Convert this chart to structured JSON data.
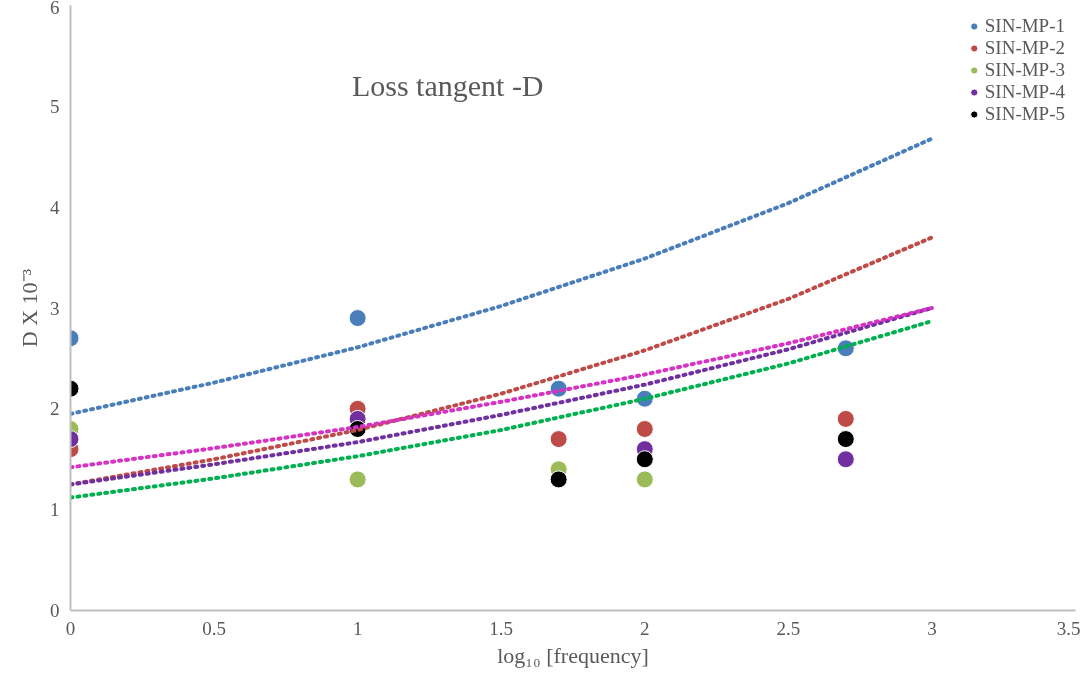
{
  "chart_data": {
    "type": "scatter",
    "title": "Loss tangent -D",
    "xlabel": "log₁₀ [frequency]",
    "ylabel": "D X 10⁻³",
    "x": [
      0,
      1,
      1.7,
      2,
      2.7
    ],
    "xlim": [
      0,
      3.5
    ],
    "xticks": [
      0,
      0.5,
      1,
      1.5,
      2,
      2.5,
      3,
      3.5
    ],
    "ylim": [
      0,
      6
    ],
    "yticks": [
      0,
      1,
      2,
      3,
      4,
      5,
      6
    ],
    "grid": false,
    "legend": "top right",
    "marker": "circle",
    "series": [
      {
        "name": "SIN-MP-1",
        "color": "#4a7ebb",
        "values": [
          2.7,
          2.9,
          2.2,
          2.1,
          2.6
        ]
      },
      {
        "name": "SIN-MP-2",
        "color": "#be4b48",
        "values": [
          1.6,
          2.0,
          1.7,
          1.8,
          1.9
        ]
      },
      {
        "name": "SIN-MP-3",
        "color": "#9bbb59",
        "values": [
          1.8,
          1.3,
          1.4,
          1.3,
          null
        ]
      },
      {
        "name": "SIN-MP-4",
        "color": "#7030a0",
        "values": [
          1.7,
          1.9,
          null,
          1.6,
          1.5
        ]
      },
      {
        "name": "SIN-MP-5",
        "color": "#000000",
        "values": [
          2.2,
          1.8,
          1.3,
          1.5,
          1.7
        ]
      },
      {
        "type": "line",
        "marker": "none",
        "line_style": "dotted",
        "color": "#4a7ebb",
        "x": [
          0,
          0.5,
          1,
          1.5,
          2,
          2.5,
          3
        ],
        "values": [
          1.95,
          2.26,
          2.61,
          3.02,
          3.49,
          4.04,
          4.68
        ]
      },
      {
        "type": "line",
        "marker": "none",
        "line_style": "dotted",
        "color": "#be4b48",
        "x": [
          0,
          0.5,
          1,
          1.5,
          2,
          2.5,
          3
        ],
        "values": [
          1.25,
          1.5,
          1.79,
          2.15,
          2.58,
          3.09,
          3.7
        ]
      },
      {
        "type": "line",
        "marker": "none",
        "line_style": "dotted",
        "color": "#00b050",
        "x": [
          0,
          0.5,
          1,
          1.5,
          2,
          2.5,
          3
        ],
        "values": [
          1.12,
          1.31,
          1.53,
          1.79,
          2.1,
          2.45,
          2.87
        ]
      },
      {
        "type": "line",
        "marker": "none",
        "line_style": "dotted",
        "color": "#7030a0",
        "x": [
          0,
          0.5,
          1,
          1.5,
          2,
          2.5,
          3
        ],
        "values": [
          1.25,
          1.45,
          1.67,
          1.94,
          2.24,
          2.59,
          3.0
        ]
      },
      {
        "type": "line",
        "marker": "none",
        "line_style": "dotted",
        "color": "#d633c4",
        "x": [
          0,
          0.5,
          1,
          1.5,
          2,
          2.5,
          3
        ],
        "values": [
          1.42,
          1.61,
          1.82,
          2.07,
          2.34,
          2.65,
          3.0
        ]
      }
    ]
  }
}
